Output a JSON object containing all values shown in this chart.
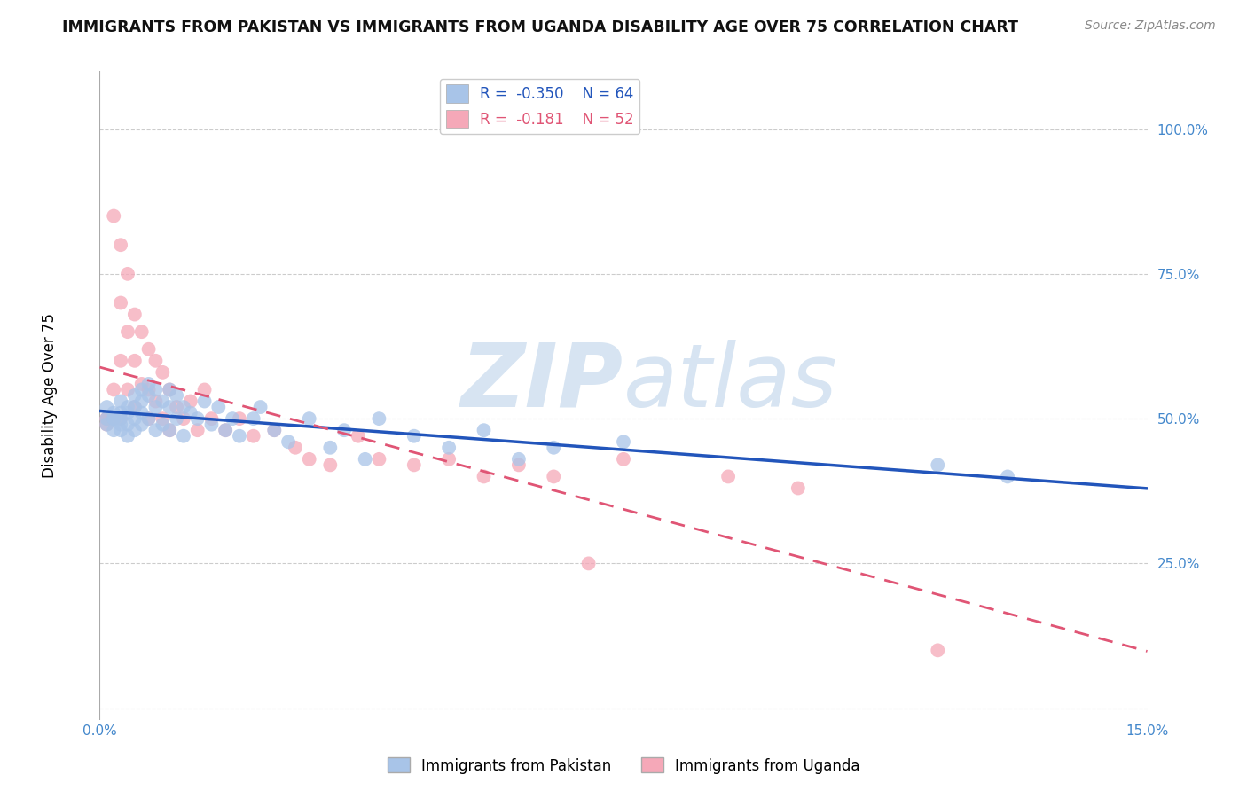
{
  "title": "IMMIGRANTS FROM PAKISTAN VS IMMIGRANTS FROM UGANDA DISABILITY AGE OVER 75 CORRELATION CHART",
  "source": "Source: ZipAtlas.com",
  "ylabel": "Disability Age Over 75",
  "xlim": [
    0.0,
    0.15
  ],
  "ylim": [
    -0.02,
    1.1
  ],
  "yticks": [
    0.0,
    0.25,
    0.5,
    0.75,
    1.0
  ],
  "ytick_labels": [
    "",
    "25.0%",
    "50.0%",
    "75.0%",
    "100.0%"
  ],
  "xticks": [
    0.0,
    0.03,
    0.06,
    0.09,
    0.12,
    0.15
  ],
  "xtick_labels": [
    "0.0%",
    "",
    "",
    "",
    "",
    "15.0%"
  ],
  "pakistan_R": -0.35,
  "pakistan_N": 64,
  "uganda_R": -0.181,
  "uganda_N": 52,
  "pakistan_color": "#a8c4e8",
  "uganda_color": "#f5a8b8",
  "pakistan_line_color": "#2255bb",
  "uganda_line_color": "#e05575",
  "background_color": "#ffffff",
  "grid_color": "#cccccc",
  "watermark_color": "#d0e0f0",
  "pakistan_x": [
    0.001,
    0.001,
    0.001,
    0.002,
    0.002,
    0.002,
    0.002,
    0.003,
    0.003,
    0.003,
    0.003,
    0.003,
    0.004,
    0.004,
    0.004,
    0.004,
    0.005,
    0.005,
    0.005,
    0.005,
    0.006,
    0.006,
    0.006,
    0.006,
    0.007,
    0.007,
    0.007,
    0.008,
    0.008,
    0.008,
    0.009,
    0.009,
    0.01,
    0.01,
    0.01,
    0.011,
    0.011,
    0.012,
    0.012,
    0.013,
    0.014,
    0.015,
    0.016,
    0.017,
    0.018,
    0.019,
    0.02,
    0.022,
    0.023,
    0.025,
    0.027,
    0.03,
    0.033,
    0.035,
    0.038,
    0.04,
    0.045,
    0.05,
    0.055,
    0.06,
    0.065,
    0.075,
    0.12,
    0.13
  ],
  "pakistan_y": [
    0.52,
    0.5,
    0.49,
    0.51,
    0.5,
    0.48,
    0.5,
    0.53,
    0.51,
    0.49,
    0.48,
    0.5,
    0.52,
    0.51,
    0.49,
    0.47,
    0.54,
    0.52,
    0.5,
    0.48,
    0.55,
    0.53,
    0.51,
    0.49,
    0.56,
    0.54,
    0.5,
    0.55,
    0.52,
    0.48,
    0.53,
    0.49,
    0.55,
    0.52,
    0.48,
    0.54,
    0.5,
    0.52,
    0.47,
    0.51,
    0.5,
    0.53,
    0.49,
    0.52,
    0.48,
    0.5,
    0.47,
    0.5,
    0.52,
    0.48,
    0.46,
    0.5,
    0.45,
    0.48,
    0.43,
    0.5,
    0.47,
    0.45,
    0.48,
    0.43,
    0.45,
    0.46,
    0.42,
    0.4
  ],
  "uganda_x": [
    0.001,
    0.001,
    0.001,
    0.002,
    0.002,
    0.002,
    0.003,
    0.003,
    0.003,
    0.003,
    0.004,
    0.004,
    0.004,
    0.005,
    0.005,
    0.005,
    0.006,
    0.006,
    0.007,
    0.007,
    0.007,
    0.008,
    0.008,
    0.009,
    0.009,
    0.01,
    0.01,
    0.011,
    0.012,
    0.013,
    0.014,
    0.015,
    0.016,
    0.018,
    0.02,
    0.022,
    0.025,
    0.028,
    0.03,
    0.033,
    0.037,
    0.04,
    0.045,
    0.05,
    0.055,
    0.06,
    0.065,
    0.07,
    0.075,
    0.09,
    0.1,
    0.12
  ],
  "uganda_y": [
    0.5,
    0.5,
    0.49,
    0.85,
    0.55,
    0.5,
    0.8,
    0.7,
    0.6,
    0.5,
    0.75,
    0.65,
    0.55,
    0.68,
    0.6,
    0.52,
    0.65,
    0.56,
    0.62,
    0.55,
    0.5,
    0.6,
    0.53,
    0.58,
    0.5,
    0.55,
    0.48,
    0.52,
    0.5,
    0.53,
    0.48,
    0.55,
    0.5,
    0.48,
    0.5,
    0.47,
    0.48,
    0.45,
    0.43,
    0.42,
    0.47,
    0.43,
    0.42,
    0.43,
    0.4,
    0.42,
    0.4,
    0.25,
    0.43,
    0.4,
    0.38,
    0.1
  ]
}
